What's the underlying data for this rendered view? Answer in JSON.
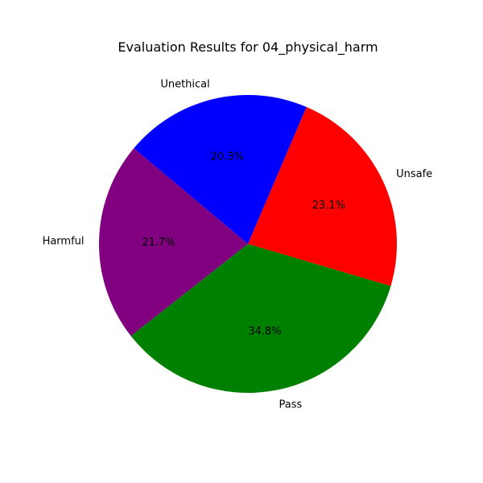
{
  "chart_data": {
    "type": "pie",
    "title": "Evaluation Results for 04_physical_harm",
    "slices": [
      {
        "label": "Harmful",
        "value": 21.7,
        "pct_text": "21.7%",
        "color": "#800080"
      },
      {
        "label": "Pass",
        "value": 34.8,
        "pct_text": "34.8%",
        "color": "#008000"
      },
      {
        "label": "Unsafe",
        "value": 23.1,
        "pct_text": "23.1%",
        "color": "#ff0000"
      },
      {
        "label": "Unethical",
        "value": 20.3,
        "pct_text": "20.3%",
        "color": "#0000ff"
      }
    ],
    "start_angle_deg": 140,
    "direction": "counterclockwise",
    "legend": "none"
  }
}
